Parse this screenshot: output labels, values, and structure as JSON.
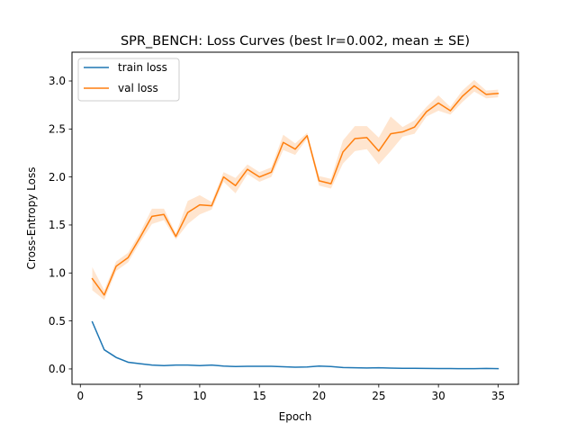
{
  "chart_data": {
    "type": "line",
    "title": "SPR_BENCH: Loss Curves (best lr=0.002, mean ± SE)",
    "xlabel": "Epoch",
    "ylabel": "Cross-Entropy Loss",
    "xlim": [
      -0.7,
      36.7
    ],
    "ylim": [
      -0.16,
      3.3
    ],
    "xticks": [
      0,
      5,
      10,
      15,
      20,
      25,
      30,
      35
    ],
    "yticks": [
      0.0,
      0.5,
      1.0,
      1.5,
      2.0,
      2.5,
      3.0
    ],
    "xtick_labels": [
      "0",
      "5",
      "10",
      "15",
      "20",
      "25",
      "30",
      "35"
    ],
    "ytick_labels": [
      "0.0",
      "0.5",
      "1.0",
      "1.5",
      "2.0",
      "2.5",
      "3.0"
    ],
    "grid": false,
    "legend_position": "top-left",
    "x": [
      1,
      2,
      3,
      4,
      5,
      6,
      7,
      8,
      9,
      10,
      11,
      12,
      13,
      14,
      15,
      16,
      17,
      18,
      19,
      20,
      21,
      22,
      23,
      24,
      25,
      26,
      27,
      28,
      29,
      30,
      31,
      32,
      33,
      34,
      35
    ],
    "series": [
      {
        "name": "train loss",
        "color": "#1f77b4",
        "values": [
          0.49,
          0.2,
          0.12,
          0.07,
          0.055,
          0.04,
          0.035,
          0.04,
          0.04,
          0.035,
          0.04,
          0.03,
          0.025,
          0.028,
          0.028,
          0.028,
          0.023,
          0.018,
          0.02,
          0.03,
          0.025,
          0.015,
          0.012,
          0.01,
          0.012,
          0.009,
          0.007,
          0.006,
          0.005,
          0.004,
          0.004,
          0.003,
          0.003,
          0.005,
          0.003
        ],
        "se": [
          0.01,
          0.01,
          0.01,
          0.008,
          0.006,
          0.005,
          0.005,
          0.005,
          0.005,
          0.005,
          0.005,
          0.004,
          0.004,
          0.004,
          0.004,
          0.004,
          0.004,
          0.003,
          0.003,
          0.004,
          0.003,
          0.003,
          0.003,
          0.003,
          0.003,
          0.002,
          0.002,
          0.002,
          0.002,
          0.002,
          0.002,
          0.002,
          0.002,
          0.002,
          0.002
        ]
      },
      {
        "name": "val loss",
        "color": "#ff7f0e",
        "values": [
          0.94,
          0.77,
          1.07,
          1.16,
          1.37,
          1.59,
          1.61,
          1.38,
          1.63,
          1.71,
          1.7,
          2.0,
          1.91,
          2.08,
          2.0,
          2.05,
          2.36,
          2.29,
          2.43,
          1.96,
          1.93,
          2.26,
          2.4,
          2.41,
          2.27,
          2.45,
          2.47,
          2.52,
          2.68,
          2.77,
          2.69,
          2.84,
          2.95,
          2.86,
          2.87
        ],
        "se": [
          0.12,
          0.05,
          0.05,
          0.05,
          0.05,
          0.08,
          0.06,
          0.03,
          0.12,
          0.1,
          0.04,
          0.05,
          0.08,
          0.05,
          0.05,
          0.05,
          0.08,
          0.06,
          0.03,
          0.05,
          0.05,
          0.12,
          0.13,
          0.12,
          0.14,
          0.18,
          0.05,
          0.07,
          0.05,
          0.08,
          0.04,
          0.06,
          0.06,
          0.04,
          0.04
        ]
      }
    ]
  }
}
